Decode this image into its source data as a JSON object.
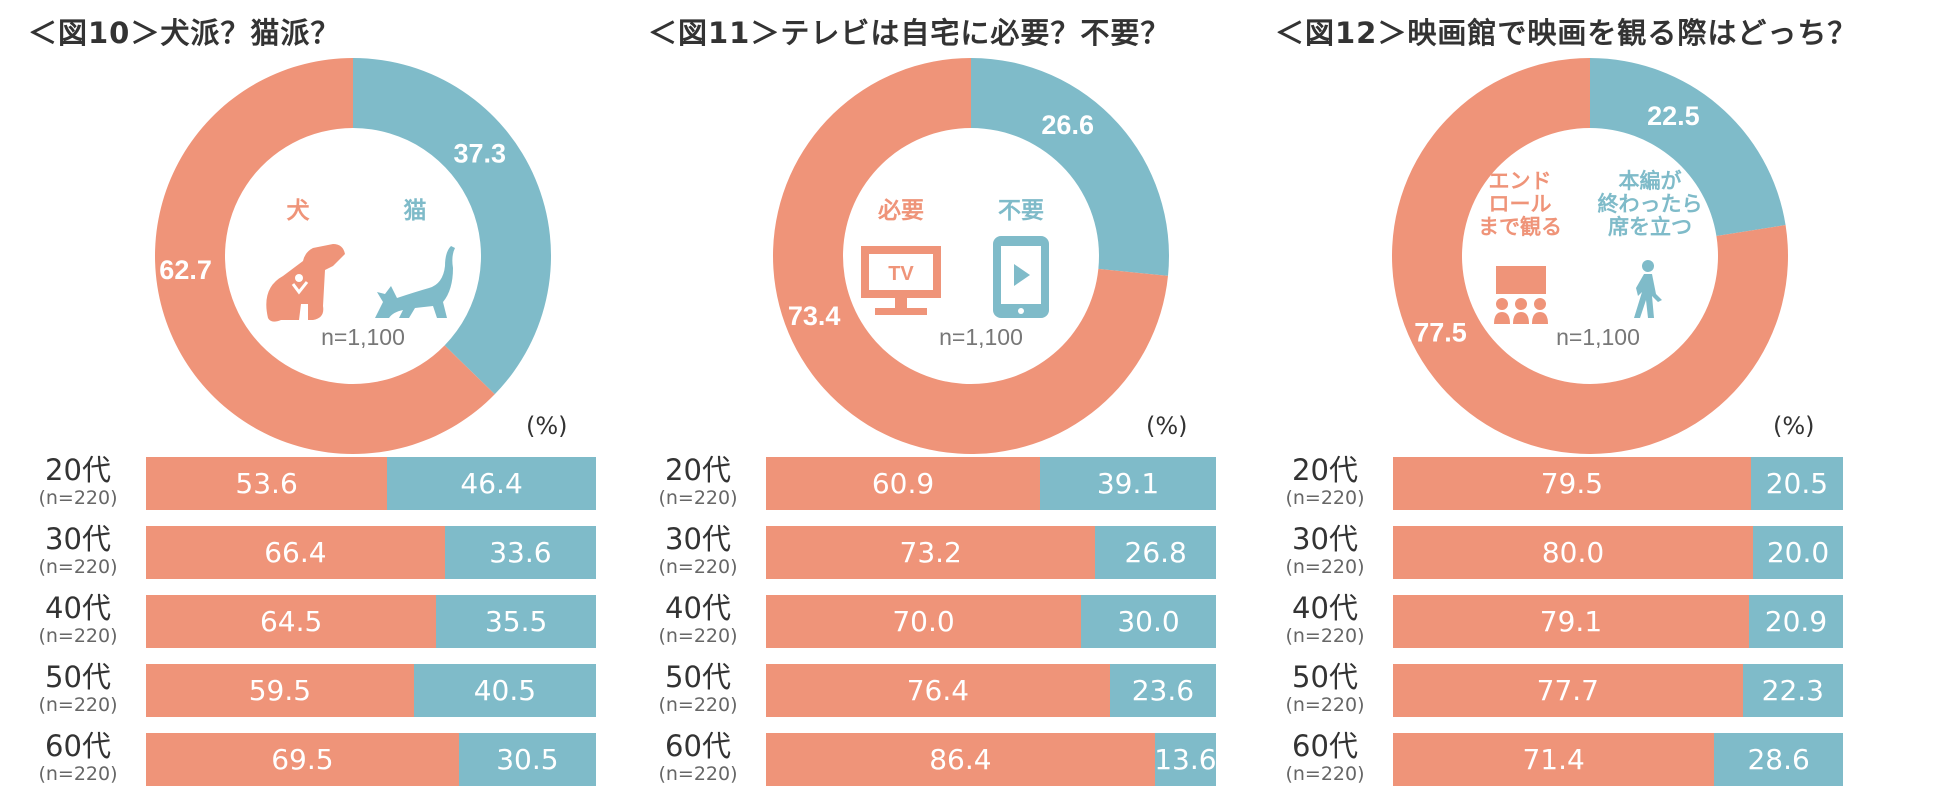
{
  "colors": {
    "primary": "#ef9479",
    "secondary": "#7fbbc9",
    "text": "#333333",
    "muted": "#777777"
  },
  "unit_label": "(%)",
  "chart_data": [
    {
      "type": "pie",
      "title": "＜図10＞犬派？猫派？",
      "sample_label": "n=1,100",
      "slices": [
        {
          "label": "犬",
          "value": 62.7,
          "value_label": "62.7"
        },
        {
          "label": "猫",
          "value": 37.3,
          "value_label": "37.3"
        }
      ],
      "icons": [
        "dog-icon",
        "cat-icon"
      ],
      "rows": [
        {
          "age": "20代",
          "n": "(n=220)",
          "values": [
            53.6,
            46.4
          ],
          "value_labels": [
            "53.6",
            "46.4"
          ]
        },
        {
          "age": "30代",
          "n": "(n=220)",
          "values": [
            66.4,
            33.6
          ],
          "value_labels": [
            "66.4",
            "33.6"
          ]
        },
        {
          "age": "40代",
          "n": "(n=220)",
          "values": [
            64.5,
            35.5
          ],
          "value_labels": [
            "64.5",
            "35.5"
          ]
        },
        {
          "age": "50代",
          "n": "(n=220)",
          "values": [
            59.5,
            40.5
          ],
          "value_labels": [
            "59.5",
            "40.5"
          ]
        },
        {
          "age": "60代",
          "n": "(n=220)",
          "values": [
            69.5,
            30.5
          ],
          "value_labels": [
            "69.5",
            "30.5"
          ]
        }
      ]
    },
    {
      "type": "pie",
      "title": "＜図11＞テレビは自宅に必要？不要？",
      "sample_label": "n=1,100",
      "slices": [
        {
          "label": "必要",
          "value": 73.4,
          "value_label": "73.4"
        },
        {
          "label": "不要",
          "value": 26.6,
          "value_label": "26.6"
        }
      ],
      "icons": [
        "tv-icon",
        "tablet-icon"
      ],
      "tv_text": "TV",
      "rows": [
        {
          "age": "20代",
          "n": "(n=220)",
          "values": [
            60.9,
            39.1
          ],
          "value_labels": [
            "60.9",
            "39.1"
          ]
        },
        {
          "age": "30代",
          "n": "(n=220)",
          "values": [
            73.2,
            26.8
          ],
          "value_labels": [
            "73.2",
            "26.8"
          ]
        },
        {
          "age": "40代",
          "n": "(n=220)",
          "values": [
            70.0,
            30.0
          ],
          "value_labels": [
            "70.0",
            "30.0"
          ]
        },
        {
          "age": "50代",
          "n": "(n=220)",
          "values": [
            76.4,
            23.6
          ],
          "value_labels": [
            "76.4",
            "23.6"
          ]
        },
        {
          "age": "60代",
          "n": "(n=220)",
          "values": [
            86.4,
            13.6
          ],
          "value_labels": [
            "86.4",
            "13.6"
          ]
        }
      ]
    },
    {
      "type": "pie",
      "title": "＜図12＞映画館で映画を観る際はどっち？",
      "sample_label": "n=1,100",
      "slices": [
        {
          "label": "エンド\nロール\nまで観る",
          "value": 77.5,
          "value_label": "77.5"
        },
        {
          "label": "本編が\n終わったら\n席を立つ",
          "value": 22.5,
          "value_label": "22.5"
        }
      ],
      "icons": [
        "audience-icon",
        "walking-person-icon"
      ],
      "rows": [
        {
          "age": "20代",
          "n": "(n=220)",
          "values": [
            79.5,
            20.5
          ],
          "value_labels": [
            "79.5",
            "20.5"
          ]
        },
        {
          "age": "30代",
          "n": "(n=220)",
          "values": [
            80.0,
            20.0
          ],
          "value_labels": [
            "80.0",
            "20.0"
          ]
        },
        {
          "age": "40代",
          "n": "(n=220)",
          "values": [
            79.1,
            20.9
          ],
          "value_labels": [
            "79.1",
            "20.9"
          ]
        },
        {
          "age": "50代",
          "n": "(n=220)",
          "values": [
            77.7,
            22.3
          ],
          "value_labels": [
            "77.7",
            "22.3"
          ]
        },
        {
          "age": "60代",
          "n": "(n=220)",
          "values": [
            71.4,
            28.6
          ],
          "value_labels": [
            "71.4",
            "28.6"
          ]
        }
      ]
    }
  ]
}
